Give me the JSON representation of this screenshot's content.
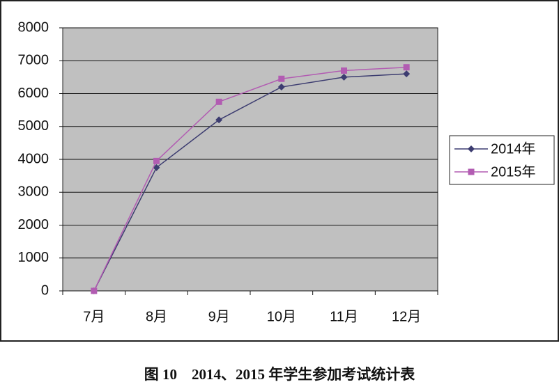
{
  "chart_data": {
    "type": "line",
    "caption": "图 10　2014、2015 年学生参加考试统计表",
    "categories": [
      "7月",
      "8月",
      "9月",
      "10月",
      "11月",
      "12月"
    ],
    "series": [
      {
        "name": "2014年",
        "color": "#3c3c70",
        "marker": "diamond",
        "values": [
          0,
          3750,
          5200,
          6200,
          6500,
          6600
        ]
      },
      {
        "name": "2015年",
        "color": "#b25cb2",
        "marker": "square",
        "values": [
          0,
          3950,
          5750,
          6450,
          6700,
          6800
        ]
      }
    ],
    "ylim": [
      0,
      8000
    ],
    "yticks": [
      0,
      1000,
      2000,
      3000,
      4000,
      5000,
      6000,
      7000,
      8000
    ],
    "grid": true,
    "legend": "right"
  }
}
